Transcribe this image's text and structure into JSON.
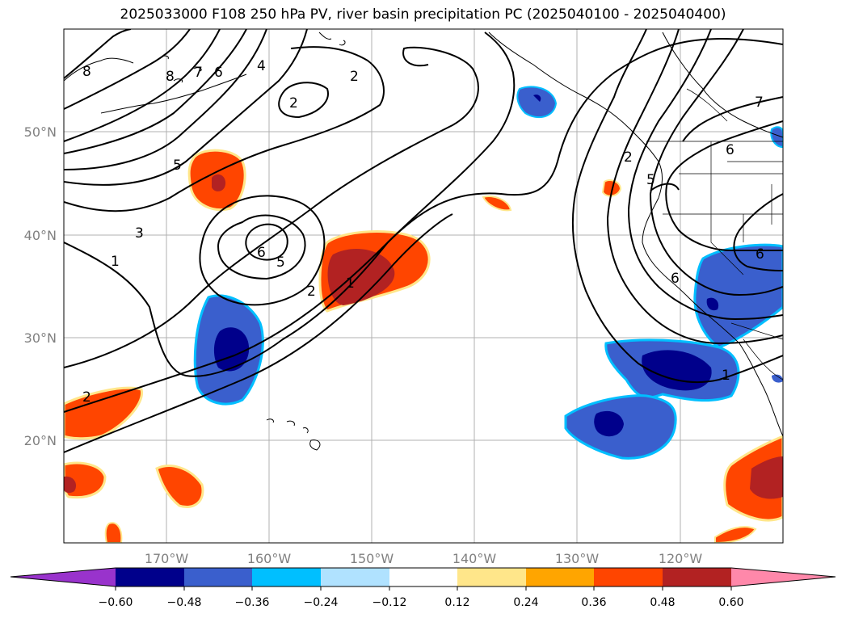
{
  "title": "2025033000 F108 250 hPa PV, river basin precipitation PC (2025040100 - 2025040400)",
  "lat_labels": [
    "50°N",
    "40°N",
    "30°N",
    "20°N"
  ],
  "lon_labels": [
    "170°W",
    "160°W",
    "150°W",
    "140°W",
    "130°W",
    "120°W"
  ],
  "contour_labels": [
    "8",
    "8",
    "7",
    "6",
    "4",
    "2",
    "2",
    "5",
    "3",
    "6",
    "5",
    "2",
    "1",
    "1",
    "2",
    "7",
    "6",
    "5",
    "2",
    "6",
    "6",
    "1"
  ],
  "colorbar": {
    "ticks": [
      "−0.60",
      "−0.48",
      "−0.36",
      "−0.24",
      "−0.12",
      "0.12",
      "0.24",
      "0.36",
      "0.48",
      "0.60"
    ],
    "colors": [
      "#9933cc",
      "#00008b",
      "#3a5fcd",
      "#00bfff",
      "#b0e2ff",
      "#ffffff",
      "#ffe68a",
      "#ffa500",
      "#ff4500",
      "#b22222",
      "#ff88aa"
    ]
  },
  "map": {
    "extent_lon": [
      -180,
      -110
    ],
    "extent_lat": [
      10,
      60
    ],
    "field": "250 hPa PV",
    "shading": "river basin precipitation PC"
  }
}
